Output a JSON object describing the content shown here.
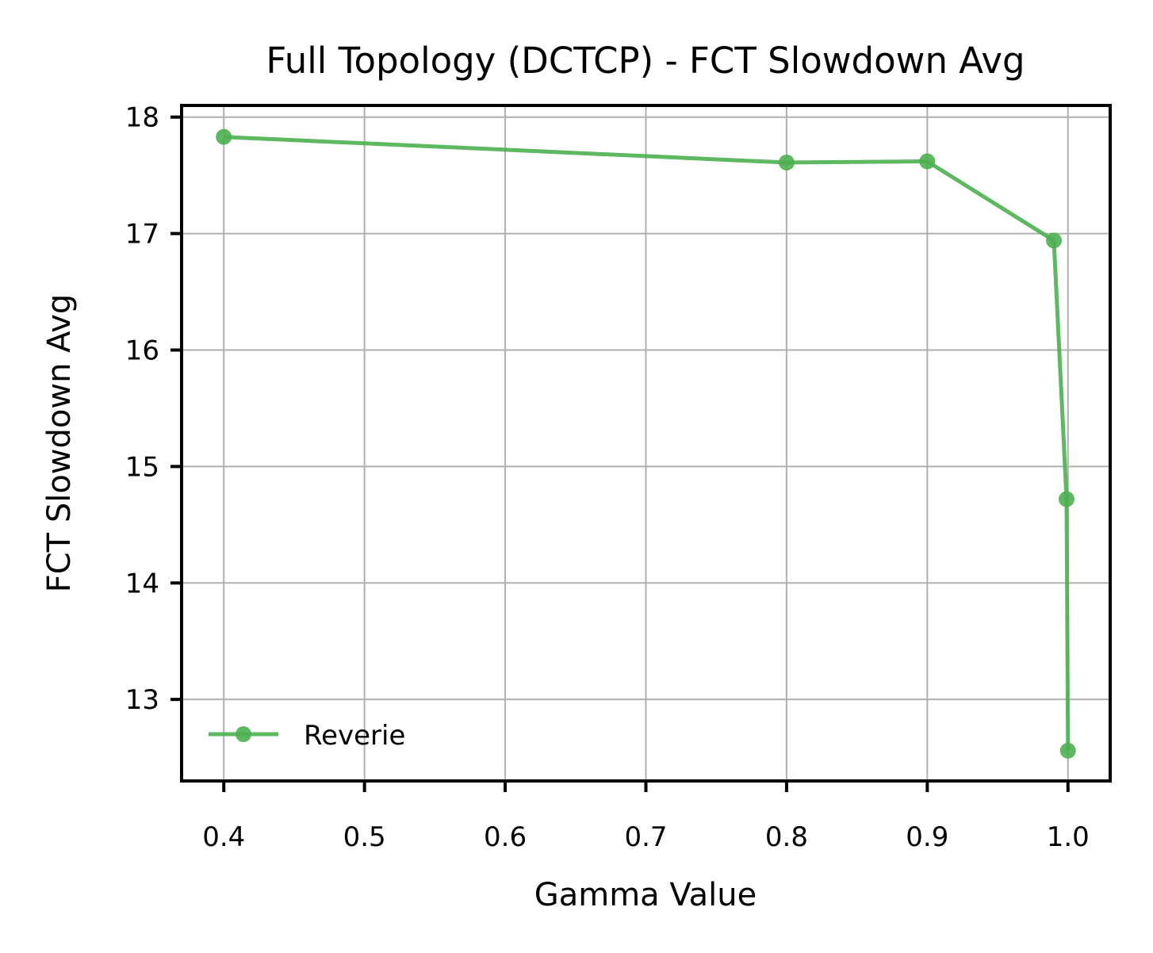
{
  "chart_data": {
    "type": "line",
    "title": "Full Topology (DCTCP) - FCT Slowdown Avg",
    "xlabel": "Gamma Value",
    "ylabel": "FCT Slowdown Avg",
    "xlim": [
      0.37,
      1.03
    ],
    "ylim": [
      12.3,
      18.1
    ],
    "xticks": [
      0.4,
      0.5,
      0.6,
      0.7,
      0.8,
      0.9,
      1.0
    ],
    "xtick_labels": [
      "0.4",
      "0.5",
      "0.6",
      "0.7",
      "0.8",
      "0.9",
      "1.0"
    ],
    "yticks": [
      13,
      14,
      15,
      16,
      17,
      18
    ],
    "ytick_labels": [
      "13",
      "14",
      "15",
      "16",
      "17",
      "18"
    ],
    "grid": true,
    "legend_position": "lower-left",
    "series": [
      {
        "name": "Reverie",
        "color": "#4caf50",
        "x": [
          0.4,
          0.8,
          0.9,
          0.99,
          0.999,
          1.0
        ],
        "y": [
          17.83,
          17.61,
          17.62,
          16.94,
          14.72,
          12.56
        ]
      }
    ]
  }
}
